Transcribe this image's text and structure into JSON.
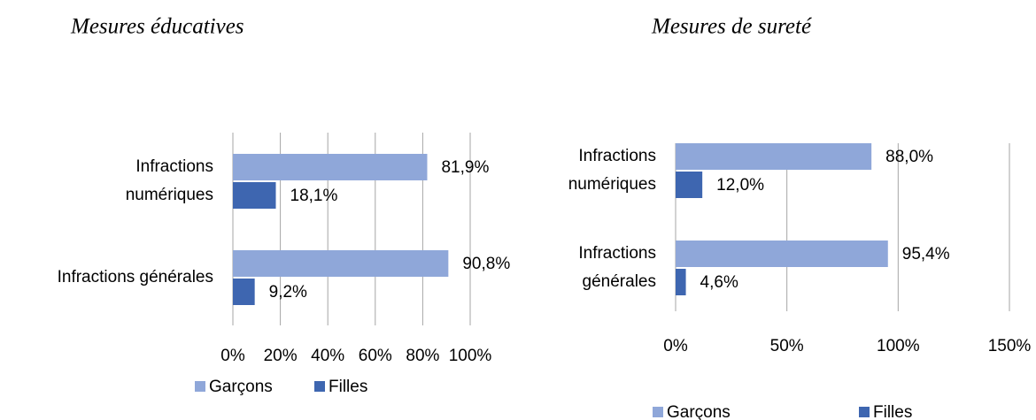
{
  "chart_data": [
    {
      "type": "barh",
      "title": "Mesures éducatives",
      "categories": [
        "Infractions numériques",
        "Infractions générales"
      ],
      "series": [
        {
          "name": "Garçons",
          "color": "#8fa7d9",
          "values": [
            81.9,
            90.8
          ],
          "value_labels": [
            "81,9%",
            "90,8%"
          ]
        },
        {
          "name": "Filles",
          "color": "#3e66b0",
          "values": [
            18.1,
            9.2
          ],
          "value_labels": [
            "18,1%",
            "9,2%"
          ]
        }
      ],
      "xlim": [
        0,
        100
      ],
      "xticks": [
        {
          "value": 0,
          "label": "0%"
        },
        {
          "value": 20,
          "label": "20%"
        },
        {
          "value": 40,
          "label": "40%"
        },
        {
          "value": 60,
          "label": "60%"
        },
        {
          "value": 80,
          "label": "80%"
        },
        {
          "value": 100,
          "label": "100%"
        }
      ],
      "grid": true,
      "legend": "bottom"
    },
    {
      "type": "barh",
      "title": "Mesures de sureté",
      "categories": [
        "Infractions numériques",
        "Infractions générales"
      ],
      "series": [
        {
          "name": "Garçons",
          "color": "#8fa7d9",
          "values": [
            88.0,
            95.4
          ],
          "value_labels": [
            "88,0%",
            "95,4%"
          ]
        },
        {
          "name": "Filles",
          "color": "#3e66b0",
          "values": [
            12.0,
            4.6
          ],
          "value_labels": [
            "12,0%",
            "4,6%"
          ]
        }
      ],
      "xlim": [
        0,
        150
      ],
      "xticks": [
        {
          "value": 0,
          "label": "0%"
        },
        {
          "value": 50,
          "label": "50%"
        },
        {
          "value": 100,
          "label": "100%"
        },
        {
          "value": 150,
          "label": "150%"
        }
      ],
      "grid": true,
      "legend": "bottom"
    }
  ]
}
